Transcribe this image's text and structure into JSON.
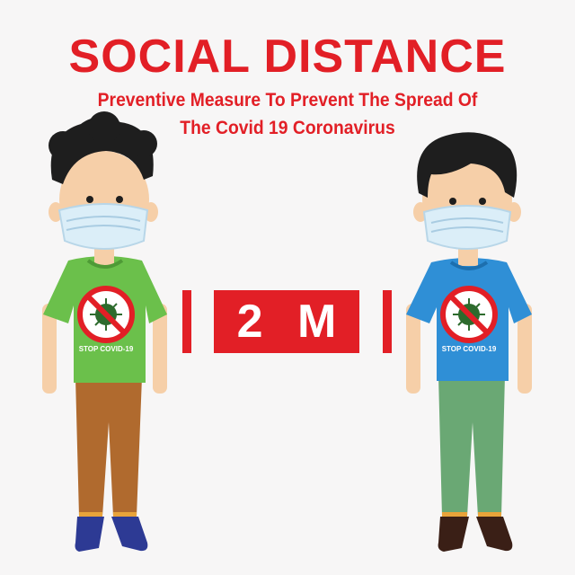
{
  "header": {
    "title": "SOCIAL DISTANCE",
    "subtitle_line1": "Preventive Measure To Prevent The Spread Of",
    "subtitle_line2": "The Covid 19 Coronavirus"
  },
  "distance_sign": {
    "label": "2 M"
  },
  "people": [
    {
      "shirt_text": "STOP COVID-19",
      "shirt_color": "#6bc04b",
      "pants_color": "#b06a2e",
      "shoe_color": "#2d3a94"
    },
    {
      "shirt_text": "STOP COVID-19",
      "shirt_color": "#2f8fd6",
      "pants_color": "#6aa874",
      "shoe_color": "#3a1f16"
    }
  ],
  "colors": {
    "accent": "#e21f26",
    "background": "#f7f6f6",
    "skin": "#f6cfa8",
    "hair": "#1e1e1e",
    "mask": "#dbeef8"
  }
}
